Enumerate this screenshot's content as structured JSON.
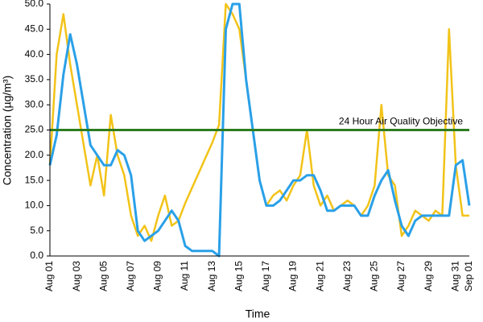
{
  "chart_data": {
    "type": "line",
    "x_label": "Time",
    "y_label": "Concentration (µg/m³)",
    "categories": [
      "Aug 01",
      null,
      null,
      null,
      "Aug 03",
      null,
      null,
      null,
      "Aug 05",
      null,
      null,
      null,
      "Aug 07",
      null,
      null,
      null,
      "Aug 09",
      null,
      null,
      null,
      "Aug 11",
      null,
      null,
      null,
      "Aug 13",
      null,
      null,
      null,
      "Aug 15",
      null,
      null,
      null,
      "Aug 17",
      null,
      null,
      null,
      "Aug 19",
      null,
      null,
      null,
      "Aug 21",
      null,
      null,
      null,
      "Aug 23",
      null,
      null,
      null,
      "Aug 25",
      null,
      null,
      null,
      "Aug 27",
      null,
      null,
      null,
      "Aug 29",
      null,
      null,
      null,
      "Aug 31",
      null,
      "Sep 01"
    ],
    "series": [
      {
        "color": "#f2c318",
        "values": [
          18,
          40,
          48,
          38,
          30,
          22,
          14,
          20,
          12,
          28,
          20,
          16,
          8,
          4,
          6,
          3,
          8,
          12,
          6,
          7,
          10.5,
          13.5,
          16.5,
          19.5,
          22.5,
          26,
          50,
          48,
          45,
          35,
          25,
          15,
          10,
          12,
          13,
          11,
          14,
          16,
          25,
          14,
          10,
          12,
          9,
          10,
          11,
          10,
          8,
          10,
          14,
          30,
          16,
          14,
          4,
          6,
          9,
          8,
          7,
          9,
          8,
          45,
          18,
          8,
          8
        ]
      },
      {
        "color": "#2aa0e8",
        "values": [
          18,
          24,
          36,
          44,
          38,
          30,
          22,
          20,
          18,
          18,
          21,
          20,
          16,
          5,
          3,
          4,
          5,
          7,
          9,
          7,
          2,
          1,
          1,
          1,
          1,
          0,
          45,
          50,
          50,
          35,
          25,
          15,
          10,
          10,
          11,
          13,
          15,
          15,
          16,
          16,
          13,
          9,
          9,
          10,
          10,
          10,
          8,
          8,
          12,
          15,
          17,
          11,
          6,
          4,
          7,
          8,
          8,
          8,
          8,
          8,
          18,
          19,
          10
        ]
      }
    ],
    "objective": {
      "value": 25,
      "label": "24 Hour Air Quality Objective",
      "color": "#2e7d1f"
    },
    "ylim": [
      0,
      50
    ],
    "yticks": [
      {
        "value": 0,
        "label": "0.0"
      },
      {
        "value": 5,
        "label": "5.0"
      },
      {
        "value": 10,
        "label": "10.0"
      },
      {
        "value": 15,
        "label": "15.0"
      },
      {
        "value": 20,
        "label": "20.0"
      },
      {
        "value": 25,
        "label": "25.0"
      },
      {
        "value": 30,
        "label": "30.0"
      },
      {
        "value": 35,
        "label": "35.0"
      },
      {
        "value": 40,
        "label": "40.0"
      },
      {
        "value": 45,
        "label": "45.0"
      },
      {
        "value": 50,
        "label": "50.0"
      }
    ],
    "grid": false
  }
}
